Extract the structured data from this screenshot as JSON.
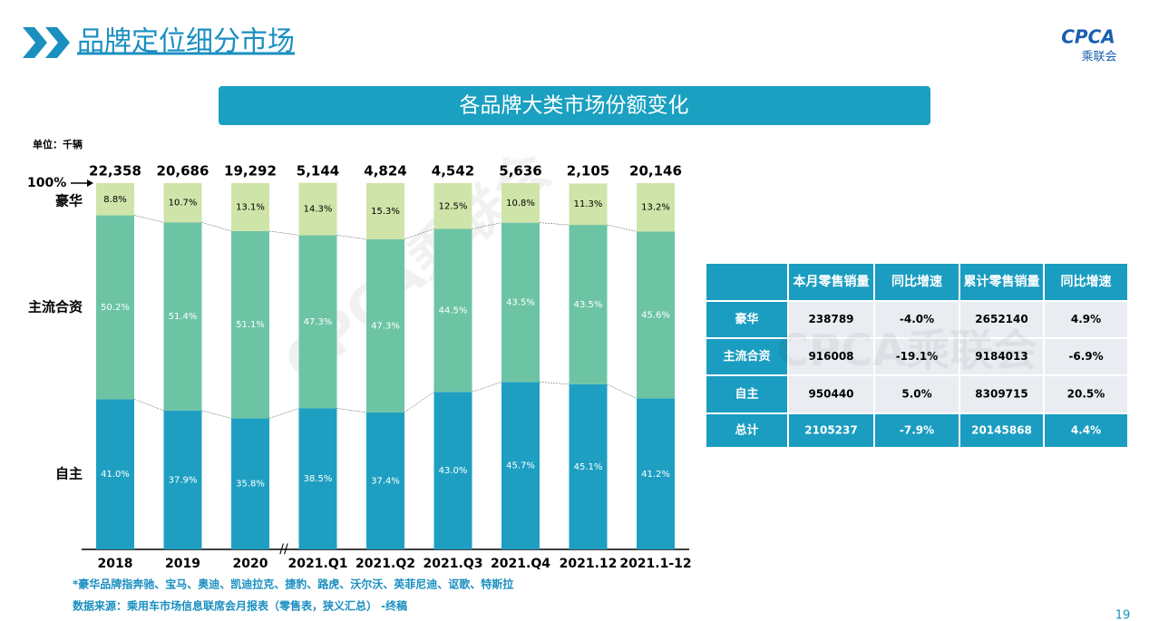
{
  "header": {
    "title": "品牌定位细分市场",
    "logo": "CPCA",
    "logo_sub": "乘联会"
  },
  "chart_data": {
    "type": "stacked_bar",
    "title": "各品牌大类市场份额变化",
    "unit": "单位：千辆",
    "categories": [
      "2018",
      "2019",
      "2020",
      "2021.Q1",
      "2021.Q2",
      "2021.Q3",
      "2021.Q4",
      "2021.12",
      "2021.1-12"
    ],
    "series": [
      {
        "name": "自主",
        "color": "#1e9fc2",
        "values": [
          41.0,
          37.9,
          35.8,
          38.5,
          37.4,
          43.0,
          45.7,
          45.1,
          41.2
        ],
        "value_labels": [
          "41.0%",
          "37.9%",
          "35.8%",
          "38.5%",
          "37.4%",
          "43.0%",
          "45.7%",
          "45.1%",
          "41.2%"
        ]
      },
      {
        "name": "主流合资",
        "color": "#6dc4a4",
        "values": [
          50.2,
          51.4,
          51.1,
          47.3,
          47.3,
          44.5,
          43.5,
          43.5,
          45.6
        ],
        "value_labels": [
          "50.2%",
          "51.4%",
          "51.1%",
          "47.3%",
          "47.3%",
          "44.5%",
          "43.5%",
          "43.5%",
          "45.6%"
        ]
      },
      {
        "name": "豪华",
        "color": "#cfe4a8",
        "values": [
          8.8,
          10.7,
          13.1,
          14.3,
          15.3,
          12.5,
          10.8,
          11.3,
          13.2
        ],
        "value_labels": [
          "8.8%",
          "10.7%",
          "13.1%",
          "14.3%",
          "15.3%",
          "12.5%",
          "10.8%",
          "11.3%",
          "13.2%"
        ]
      }
    ],
    "totals": {
      "values": [
        22358,
        20686,
        19292,
        5144,
        4824,
        4542,
        5636,
        2105,
        20146
      ],
      "value_labels": [
        "22,358",
        "20,686",
        "19,292",
        "5,144",
        "4,824",
        "4,542",
        "5,636",
        "2,105",
        "20,146"
      ]
    },
    "ylim": [
      0,
      100
    ],
    "yticks": [
      {
        "value": 100,
        "label": "100%"
      }
    ],
    "watermark": "CPCA乘联会"
  },
  "table": {
    "columns": [
      "本月零售销量",
      "同比增速",
      "累计零售销量",
      "同比增速"
    ],
    "rows": [
      {
        "label": "豪华",
        "cells": [
          "238789",
          "-4.0%",
          "2652140",
          "4.9%"
        ]
      },
      {
        "label": "主流合资",
        "cells": [
          "916008",
          "-19.1%",
          "9184013",
          "-6.9%"
        ]
      },
      {
        "label": "自主",
        "cells": [
          "950440",
          "5.0%",
          "8309715",
          "20.5%"
        ]
      },
      {
        "label": "总计",
        "cells": [
          "2105237",
          "-7.9%",
          "20145868",
          "4.4%"
        ]
      }
    ],
    "watermark": "CPCA乘联会"
  },
  "footnotes": [
    "*豪华品牌指奔驰、宝马、奥迪、凯迪拉克、捷豹、路虎、沃尔沃、英菲尼迪、讴歌、特斯拉",
    "数据来源：乘用车市场信息联席会月报表（零售表，狭义汇总） -终稿"
  ],
  "page_number": "19"
}
